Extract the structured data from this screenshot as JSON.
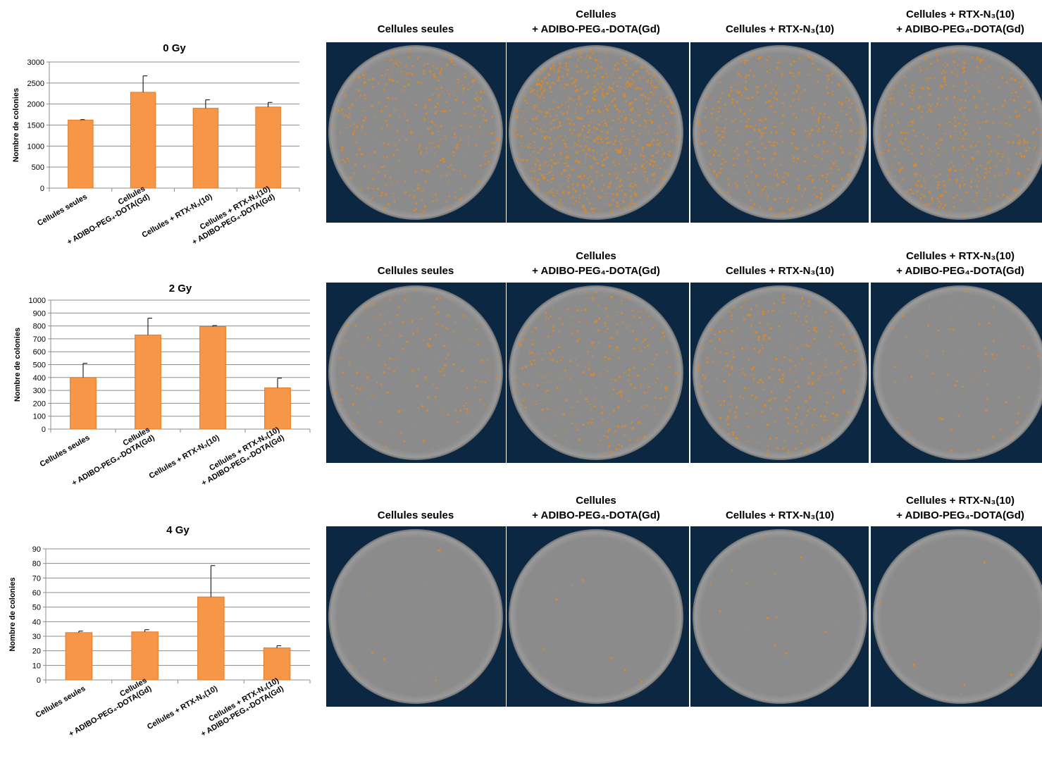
{
  "chart_data": [
    {
      "type": "bar",
      "title": "0 Gy",
      "y_label": "Nombre de colonies",
      "categories": [
        "Cellules seules",
        "Cellules\n+ ADIBO-PEG₄-DOTA(Gd)",
        "Cellules + RTX-N₃(10)",
        "Cellules + RTX-N₃(10)\n+ ADIBO-PEG₄-DOTA(Gd)"
      ],
      "values": [
        1620,
        2280,
        1900,
        1930
      ],
      "errors": [
        10,
        390,
        200,
        110
      ],
      "color": "#f79646",
      "ylim": [
        0,
        3000
      ],
      "yticks": [
        0,
        500,
        1000,
        1500,
        2000,
        2500,
        3000
      ],
      "grid": true
    },
    {
      "type": "bar",
      "title": "2 Gy",
      "y_label": "Nombre de colonies",
      "categories": [
        "Cellules seules",
        "Cellules\n+ ADIBO-PEG₄-DOTA(Gd)",
        "Cellules + RTX-N₃(10)",
        "Cellules + RTX-N₃(10)\n+ ADIBO-PEG₄-DOTA(Gd)"
      ],
      "values": [
        400,
        730,
        795,
        320
      ],
      "errors": [
        110,
        130,
        8,
        75
      ],
      "color": "#f79646",
      "ylim": [
        0,
        1000
      ],
      "yticks": [
        0,
        100,
        200,
        300,
        400,
        500,
        600,
        700,
        800,
        900,
        1000
      ],
      "grid": true
    },
    {
      "type": "bar",
      "title": "4 Gy",
      "y_label": "Nombre de colonies",
      "categories": [
        "Cellules seules",
        "Cellules\n+ ADIBO-PEG₄-DOTA(Gd)",
        "Cellules + RTX-N₃(10)",
        "Cellules + RTX-N₃(10)\n+ ADIBO-PEG₄-DOTA(Gd)"
      ],
      "values": [
        32.5,
        33,
        57,
        22
      ],
      "errors": [
        1,
        1.5,
        21.5,
        1.5
      ],
      "color": "#f79646",
      "ylim": [
        0,
        90
      ],
      "yticks": [
        0,
        10,
        20,
        30,
        40,
        50,
        60,
        70,
        80,
        90
      ],
      "grid": true
    }
  ],
  "plates": {
    "rows": [
      [
        "Cellules seules",
        "Cellules\n+ ADIBO-PEG₄-DOTA(Gd)",
        "Cellules + RTX-N₃(10)",
        "Cellules + RTX-N₃(10)\n+ ADIBO-PEG₄-DOTA(Gd)"
      ],
      [
        "Cellules seules",
        "Cellules\n+ ADIBO-PEG₄-DOTA(Gd)",
        "Cellules + RTX-N₃(10)",
        "Cellules + RTX-N₃(10)\n+ ADIBO-PEG₄-DOTA(Gd)"
      ],
      [
        "Cellules seules",
        "Cellules\n+ ADIBO-PEG₄-DOTA(Gd)",
        "Cellules + RTX-N₃(10)",
        "Cellules + RTX-N₃(10)\n+ ADIBO-PEG₄-DOTA(Gd)"
      ]
    ]
  }
}
